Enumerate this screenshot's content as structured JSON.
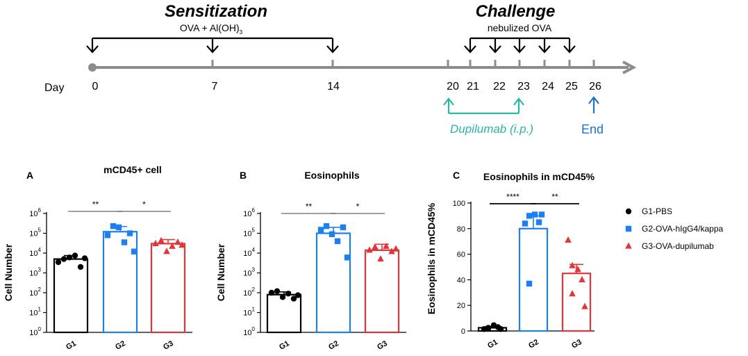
{
  "timeline": {
    "sensitization_title": "Sensitization",
    "sensitization_agent": "OVA + Al(OH)",
    "sensitization_agent_sub": "3",
    "challenge_title": "Challenge",
    "challenge_agent": "nebulized OVA",
    "day_label": "Day",
    "days": [
      "0",
      "7",
      "14",
      "20",
      "21",
      "22",
      "23",
      "24",
      "25",
      "26"
    ],
    "treatment_label": "Dupilumab (i.p.)",
    "end_label": "End",
    "colors": {
      "axis": "#8c8c8c",
      "treatment": "#2ab5a5",
      "end": "#1f6fc6"
    }
  },
  "legend": {
    "items": [
      {
        "label": "G1-PBS",
        "color": "#000000",
        "marker": "circle"
      },
      {
        "label": "G2-OVA-hIgG4/kappa",
        "color": "#1e7ff0",
        "marker": "square"
      },
      {
        "label": "G3-OVA-dupilumab",
        "color": "#e0353b",
        "marker": "triangle"
      }
    ]
  },
  "chart_data": [
    {
      "panel": "A",
      "type": "bar",
      "title": "mCD45+ cell",
      "ylabel": "Cell Number",
      "yscale": "log",
      "ylim": [
        1,
        1000000
      ],
      "yticks": [
        {
          "base": "10",
          "exp": "0"
        },
        {
          "base": "10",
          "exp": "1"
        },
        {
          "base": "10",
          "exp": "2"
        },
        {
          "base": "10",
          "exp": "3"
        },
        {
          "base": "10",
          "exp": "4"
        },
        {
          "base": "10",
          "exp": "5"
        },
        {
          "base": "10",
          "exp": "6"
        }
      ],
      "categories": [
        "G1",
        "G2",
        "G3"
      ],
      "means": [
        5000,
        120000,
        30000
      ],
      "errors": [
        7500,
        220000,
        48000
      ],
      "points": [
        [
          3500,
          5000,
          6000,
          7500,
          2000,
          5500
        ],
        [
          80000,
          230000,
          200000,
          35000,
          100000,
          12000
        ],
        [
          30000,
          42000,
          12000,
          22000,
          35000,
          25000
        ]
      ],
      "significance": [
        {
          "from": "G1",
          "to": "G2",
          "label": "**"
        },
        {
          "from": "G2",
          "to": "G3",
          "label": "*"
        }
      ]
    },
    {
      "panel": "B",
      "type": "bar",
      "title": "Eosinophils",
      "ylabel": "Cell Number",
      "yscale": "log",
      "ylim": [
        1,
        1000000
      ],
      "yticks": [
        {
          "base": "10",
          "exp": "0"
        },
        {
          "base": "10",
          "exp": "1"
        },
        {
          "base": "10",
          "exp": "2"
        },
        {
          "base": "10",
          "exp": "3"
        },
        {
          "base": "10",
          "exp": "4"
        },
        {
          "base": "10",
          "exp": "5"
        },
        {
          "base": "10",
          "exp": "6"
        }
      ],
      "categories": [
        "G1",
        "G2",
        "G3"
      ],
      "means": [
        80,
        100000,
        14000
      ],
      "errors": [
        110,
        200000,
        28000
      ],
      "points": [
        [
          100,
          120,
          60,
          90,
          50,
          75
        ],
        [
          150000,
          230000,
          90000,
          40000,
          200000,
          6000
        ],
        [
          14000,
          20000,
          5000,
          22000,
          12000,
          16000
        ]
      ],
      "significance": [
        {
          "from": "G1",
          "to": "G2",
          "label": "**"
        },
        {
          "from": "G2",
          "to": "G3",
          "label": "*"
        }
      ]
    },
    {
      "panel": "C",
      "type": "bar",
      "title": "Eosinophils in mCD45%",
      "ylabel": "Eosinophils in mCD45%",
      "yscale": "linear",
      "ylim": [
        0,
        100
      ],
      "yticks": [
        {
          "base": "0"
        },
        {
          "base": "20"
        },
        {
          "base": "40"
        },
        {
          "base": "60"
        },
        {
          "base": "80"
        },
        {
          "base": "100"
        }
      ],
      "categories": [
        "G1",
        "G2",
        "G3"
      ],
      "means": [
        2.5,
        80,
        45
      ],
      "errors": [
        3.5,
        90,
        52
      ],
      "points": [
        [
          1.5,
          2.5,
          4.5,
          3,
          2,
          1.5
        ],
        [
          84,
          90,
          91,
          85,
          37,
          91
        ],
        [
          71,
          51,
          48,
          40,
          29,
          19
        ]
      ],
      "significance": [
        {
          "from": "G1",
          "to": "G2",
          "label": "****"
        },
        {
          "from": "G2",
          "to": "G3",
          "label": "**"
        }
      ]
    }
  ]
}
